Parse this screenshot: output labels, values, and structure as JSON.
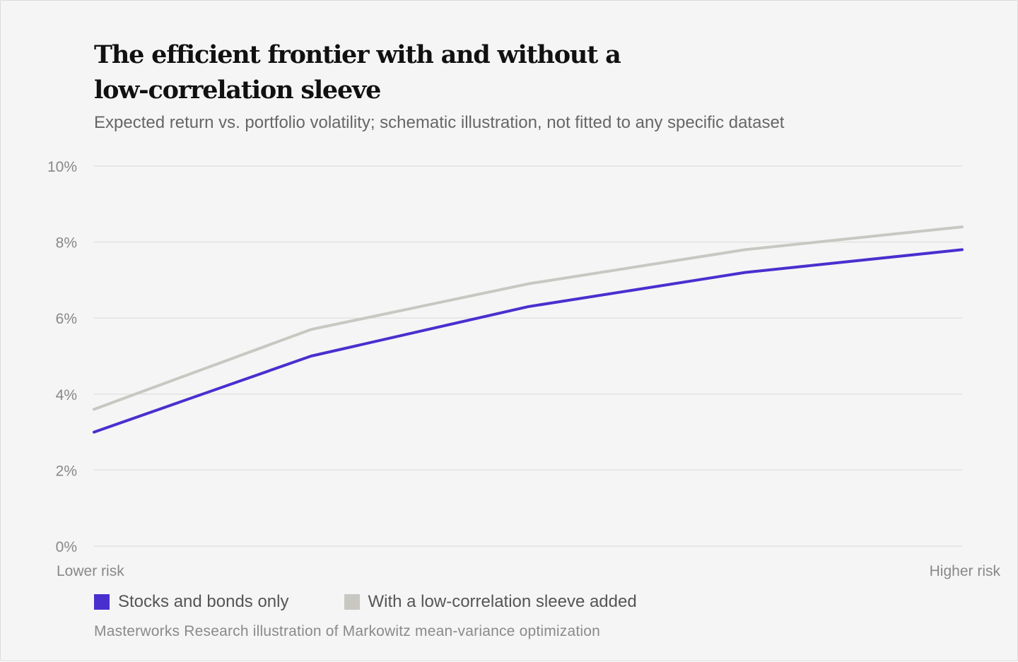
{
  "colors": {
    "series_1": "#4a2fcf",
    "series_2": "#c8c7c1",
    "grid": "#e2e2e2",
    "tick_text": "#888888"
  },
  "chart_data": {
    "type": "line",
    "title": "The efficient frontier with and without a low-correlation sleeve",
    "subtitle": "Expected return vs. portfolio volatility; schematic illustration, not fitted to any specific dataset",
    "x": [
      0,
      1,
      2,
      3,
      4
    ],
    "x_axis": {
      "left_label": "Lower risk",
      "right_label": "Higher risk",
      "range": [
        0,
        4
      ]
    },
    "y_axis": {
      "range": [
        0,
        10
      ],
      "ticks": [
        0,
        2,
        4,
        6,
        8,
        10
      ],
      "tick_labels": [
        "0%",
        "2%",
        "4%",
        "6%",
        "8%",
        "10%"
      ]
    },
    "grid": true,
    "legend_position": "bottom-left",
    "series": [
      {
        "name": "Stocks and bonds only",
        "values": [
          3.0,
          5.0,
          6.3,
          7.2,
          7.8
        ]
      },
      {
        "name": "With a low-correlation sleeve added",
        "values": [
          3.6,
          5.7,
          6.9,
          7.8,
          8.4
        ]
      }
    ],
    "source": "Masterworks Research illustration of Markowitz mean-variance optimization"
  }
}
